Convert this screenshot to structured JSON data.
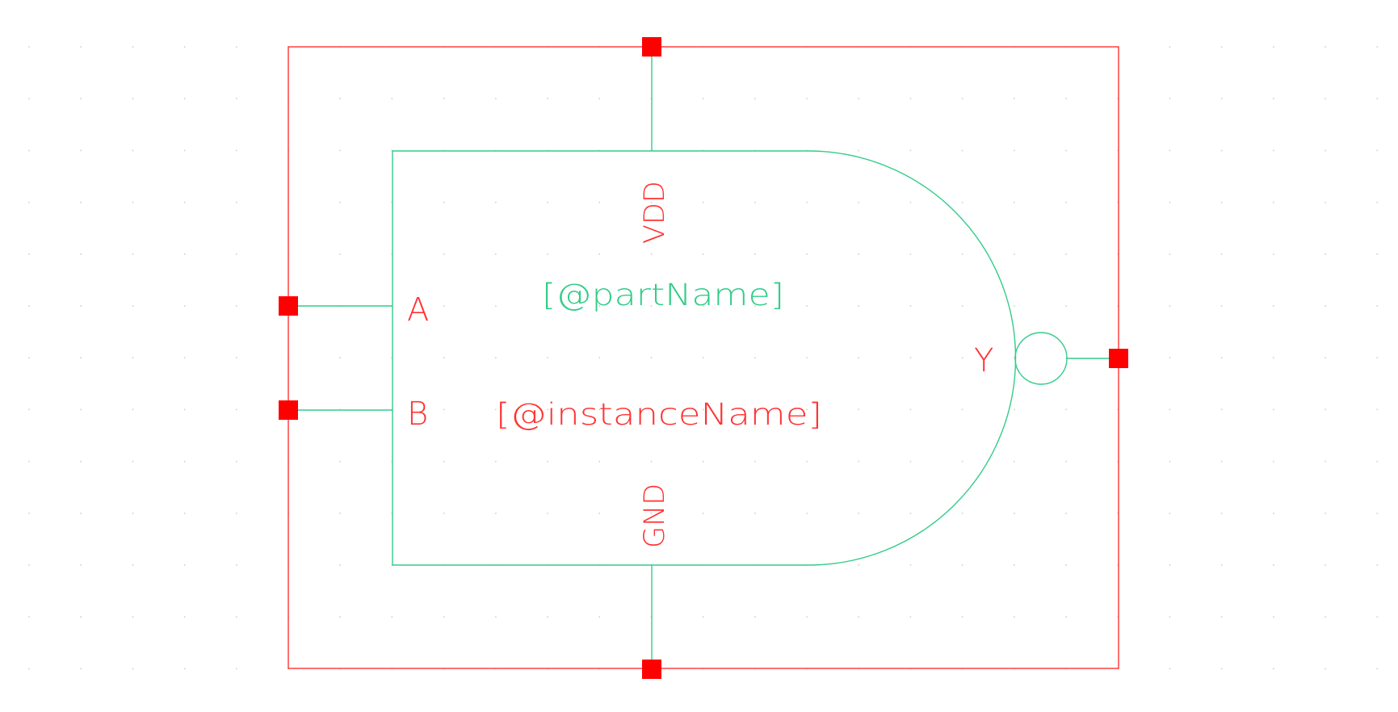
{
  "symbol": {
    "part_name_label": "[@partName]",
    "instance_name_label": "[@instanceName]",
    "pins": {
      "vdd": "VDD",
      "gnd": "GND",
      "a": "A",
      "b": "B",
      "y": "Y"
    }
  },
  "colors": {
    "background": "#ffffff",
    "grid_dot": "#c8c8c8",
    "boundary": "#ff3333",
    "pin_square": "#ff0000",
    "shape": "#33cc88",
    "pin_label": "#ff3333",
    "part_label": "#33cc88",
    "instance_label": "#ff3333"
  }
}
